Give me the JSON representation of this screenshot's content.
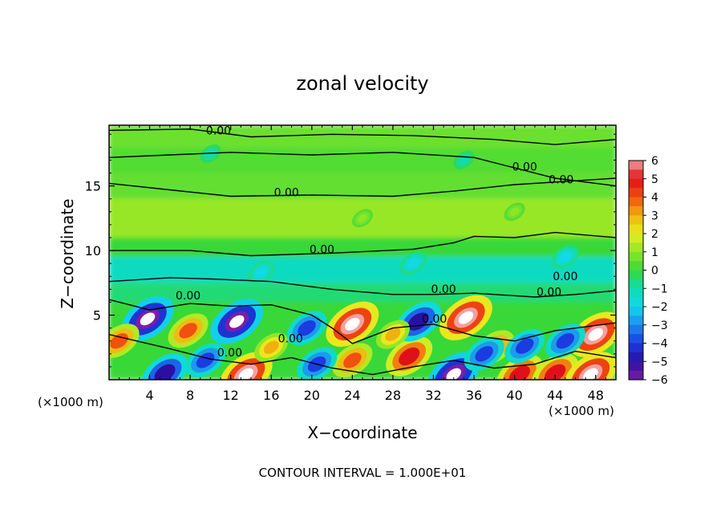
{
  "chart_data": {
    "type": "heatmap",
    "title": "zonal velocity",
    "xlabel": "X−coordinate",
    "ylabel": "Z−coordinate",
    "x_units_left": "(×1000 m)",
    "x_units_right": "(×1000 m)",
    "footer": "CONTOUR INTERVAL = 1.000E+01",
    "xlim": [
      0,
      50
    ],
    "ylim": [
      0,
      19.7
    ],
    "x_ticks": [
      4,
      8,
      12,
      16,
      20,
      24,
      28,
      32,
      36,
      40,
      44,
      48
    ],
    "y_ticks": [
      5,
      10,
      15
    ],
    "colorbar": {
      "range": [
        -6,
        6
      ],
      "ticks": [
        6,
        5,
        4,
        3,
        2,
        1,
        0,
        -1,
        -2,
        -3,
        -4,
        -5,
        -6
      ],
      "tick_labels": [
        "6",
        "5",
        "4",
        "3",
        "2",
        "1",
        "0",
        "−1",
        "−2",
        "−3",
        "−4",
        "−5",
        "−6"
      ]
    },
    "contour_labels": [
      {
        "text": "0.00",
        "x": 10.8,
        "z": 19.0
      },
      {
        "text": "0.00",
        "x": 17.5,
        "z": 14.2
      },
      {
        "text": "0.00",
        "x": 41.0,
        "z": 16.2
      },
      {
        "text": "0.00",
        "x": 44.6,
        "z": 15.2
      },
      {
        "text": "0.00",
        "x": 21.0,
        "z": 9.8
      },
      {
        "text": "0.00",
        "x": 45.0,
        "z": 7.7
      },
      {
        "text": "0.00",
        "x": 43.4,
        "z": 6.5
      },
      {
        "text": "0.00",
        "x": 7.8,
        "z": 6.2
      },
      {
        "text": "0.00",
        "x": 33.0,
        "z": 6.7
      },
      {
        "text": "0.00",
        "x": 32.1,
        "z": 4.4
      },
      {
        "text": "0.00",
        "x": 17.9,
        "z": 2.9
      },
      {
        "text": "0.00",
        "x": 11.9,
        "z": 1.8
      }
    ],
    "features": [
      {
        "x": 3.8,
        "z": 4.7,
        "value": -6
      },
      {
        "x": 12.6,
        "z": 4.5,
        "value": -6
      },
      {
        "x": 24.0,
        "z": 4.3,
        "value": 6
      },
      {
        "x": 35.2,
        "z": 4.8,
        "value": 6
      },
      {
        "x": 48.0,
        "z": 3.5,
        "value": 6
      },
      {
        "x": 1.0,
        "z": 3.0,
        "value": 4
      },
      {
        "x": 7.8,
        "z": 3.8,
        "value": 4
      },
      {
        "x": 13.5,
        "z": 0.4,
        "value": 6
      },
      {
        "x": 24.0,
        "z": 1.5,
        "value": 4
      },
      {
        "x": 29.6,
        "z": 1.8,
        "value": 5
      },
      {
        "x": 34.0,
        "z": 0.4,
        "value": -6
      },
      {
        "x": 38.0,
        "z": 2.5,
        "value": 4
      },
      {
        "x": 40.5,
        "z": 0.4,
        "value": 5
      },
      {
        "x": 44.0,
        "z": 0.5,
        "value": 5
      },
      {
        "x": 47.5,
        "z": 0.4,
        "value": 6
      },
      {
        "x": 5.5,
        "z": 0.5,
        "value": -5
      },
      {
        "x": 9.5,
        "z": 1.5,
        "value": -4
      },
      {
        "x": 19.5,
        "z": 4.0,
        "value": -4
      },
      {
        "x": 20.5,
        "z": 1.2,
        "value": -4
      },
      {
        "x": 30.5,
        "z": 4.5,
        "value": -5
      },
      {
        "x": 37.0,
        "z": 2.0,
        "value": -4
      },
      {
        "x": 41.0,
        "z": 2.6,
        "value": -4
      },
      {
        "x": 45.0,
        "z": 3.0,
        "value": -4
      },
      {
        "x": 16.0,
        "z": 2.5,
        "value": 3
      },
      {
        "x": 28.0,
        "z": 3.5,
        "value": 3
      },
      {
        "x": 15.0,
        "z": 8.3,
        "value": -2
      },
      {
        "x": 30.0,
        "z": 9.0,
        "value": -2
      },
      {
        "x": 45.0,
        "z": 9.5,
        "value": -2
      },
      {
        "x": 25.0,
        "z": 12.5,
        "value": 1
      },
      {
        "x": 40.0,
        "z": 13.0,
        "value": 1
      },
      {
        "x": 10.0,
        "z": 17.5,
        "value": -1
      },
      {
        "x": 35.0,
        "z": 17.0,
        "value": -1
      }
    ]
  }
}
